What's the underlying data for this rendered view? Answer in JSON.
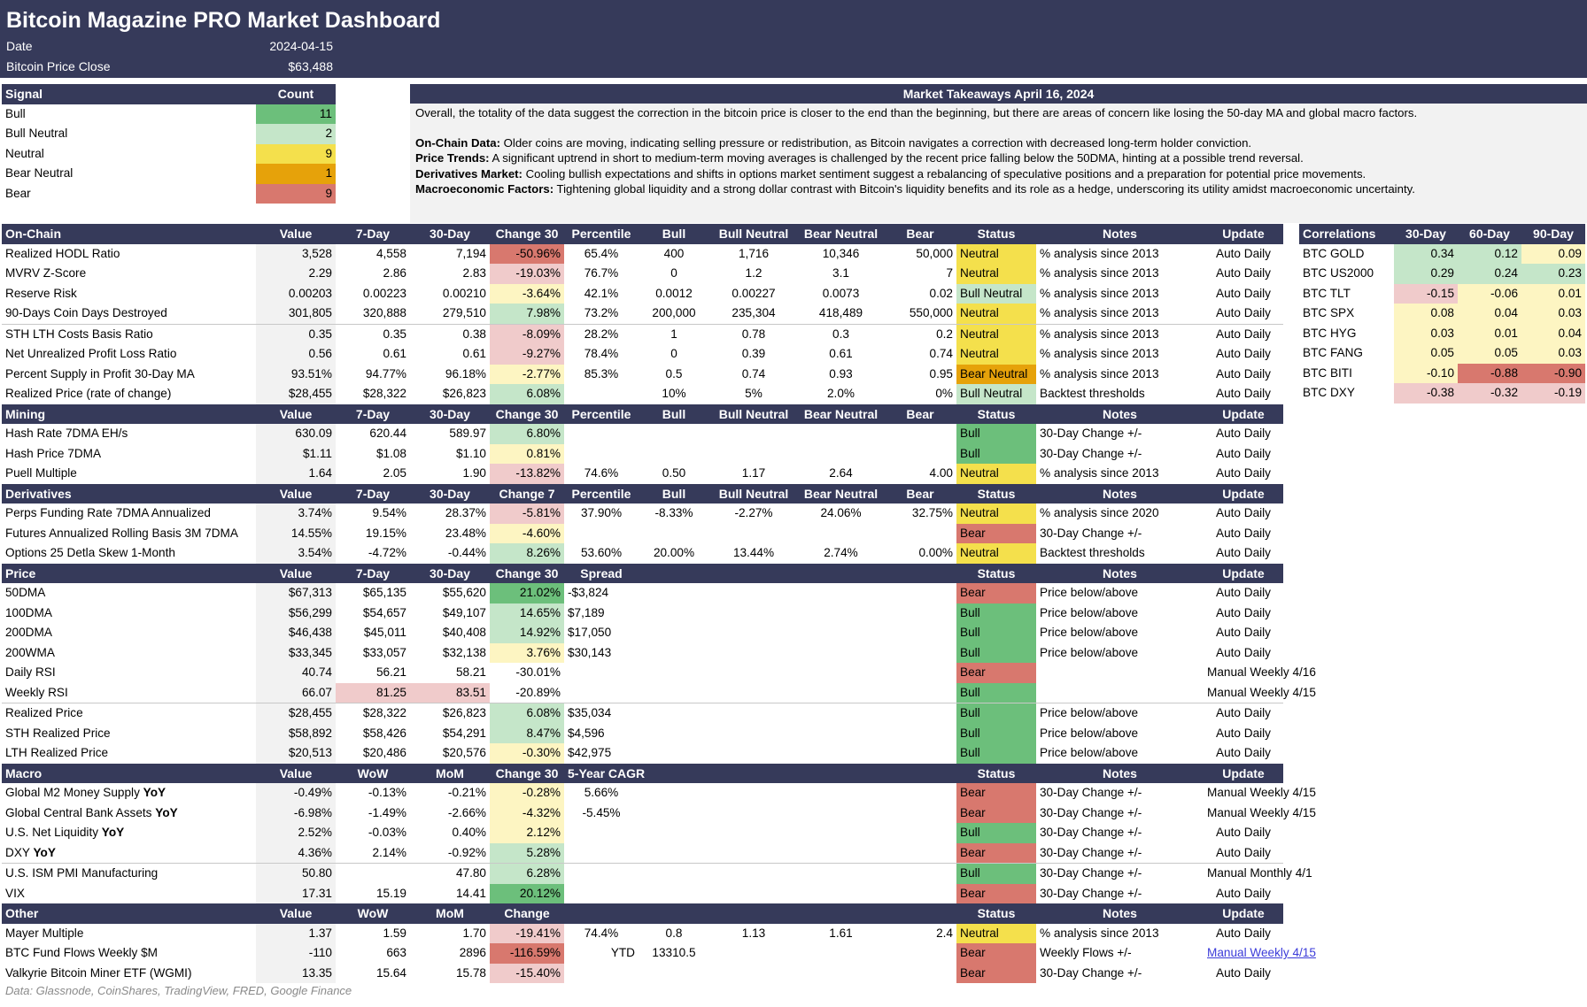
{
  "header": {
    "title": "Bitcoin Magazine PRO Market Dashboard",
    "date_label": "Date",
    "date_value": "2024-04-15",
    "price_label": "Bitcoin Price Close",
    "price_value": "$63,488"
  },
  "colors": {
    "header_bg": "#363a5a",
    "green_strong": "#6cbf7b",
    "green_light": "#c5e6c9",
    "yellow": "#f4e04c",
    "yellow_light": "#fdf5c2",
    "orange": "#e6a20a",
    "red": "#d8786e",
    "red_light": "#f0cbcb",
    "gray_cell": "#f2f2f2"
  },
  "signals": {
    "h1": "Signal",
    "h2": "Count",
    "rows": [
      {
        "name": "Bull",
        "count": "11",
        "color": "#6cbf7b"
      },
      {
        "name": "Bull Neutral",
        "count": "2",
        "color": "#c5e6c9"
      },
      {
        "name": "Neutral",
        "count": "9",
        "color": "#f4e04c"
      },
      {
        "name": "Bear Neutral",
        "count": "1",
        "color": "#e6a20a"
      },
      {
        "name": "Bear",
        "count": "9",
        "color": "#d8786e"
      }
    ]
  },
  "takeaways": {
    "title": "Market Takeaways April 16, 2024",
    "intro": "Overall, the totality of the data suggest the correction in the bitcoin price is closer to the end than the beginning, but there are areas of concern like losing the 50-day MA and global macro factors.",
    "items": [
      {
        "label": "On-Chain Data:",
        "text": " Older coins are moving, indicating selling pressure or redistribution, as Bitcoin navigates a correction with decreased long-term holder conviction."
      },
      {
        "label": "Price Trends:",
        "text": " A significant uptrend in short to medium-term moving averages is challenged by the recent price falling below the 50DMA, hinting at a possible trend reversal."
      },
      {
        "label": "Derivatives Market:",
        "text": " Cooling bullish expectations and shifts in options market sentiment suggest a rebalancing of speculative positions and a preparation for potential price movements."
      },
      {
        "label": "Macroeconomic Factors:",
        "text": " Tightening global liquidity and a strong dollar contrast with Bitcoin's liquidity benefits and its role as a hedge, underscoring its utility amidst macroeconomic uncertainty."
      }
    ]
  },
  "main": {
    "sections": [
      {
        "name": "On-Chain",
        "cols": [
          "Value",
          "7-Day",
          "30-Day",
          "Change 30",
          "Percentile",
          "Bull",
          "Bull Neutral",
          "Bear Neutral",
          "Bear",
          "Status",
          "Notes",
          "Update"
        ],
        "rows": [
          {
            "m": "Realized HODL Ratio",
            "v": "3,528",
            "d7": "4,558",
            "d30": "7,194",
            "ch": "-50.96%",
            "chc": "#d8786e",
            "p": "65.4%",
            "b": "400",
            "bn": "1,716",
            "brn": "10,346",
            "br": "50,000",
            "st": "Neutral",
            "n": "% analysis since 2013",
            "u": "Auto Daily"
          },
          {
            "m": "MVRV Z-Score",
            "v": "2.29",
            "d7": "2.86",
            "d30": "2.83",
            "ch": "-19.03%",
            "chc": "#f0cbcb",
            "p": "76.7%",
            "b": "0",
            "bn": "1.2",
            "brn": "3.1",
            "br": "7",
            "st": "Neutral",
            "n": "% analysis since 2013",
            "u": "Auto Daily"
          },
          {
            "m": "Reserve Risk",
            "v": "0.00203",
            "d7": "0.00223",
            "d30": "0.00210",
            "ch": "-3.64%",
            "chc": "#fdf5c2",
            "p": "42.1%",
            "b": "0.0012",
            "bn": "0.00227",
            "brn": "0.0073",
            "br": "0.02",
            "st": "Bull Neutral",
            "n": "% analysis since 2013",
            "u": "Auto Daily"
          },
          {
            "m": "90-Days Coin Days Destroyed",
            "v": "301,805",
            "d7": "320,888",
            "d30": "279,510",
            "ch": "7.98%",
            "chc": "#c5e6c9",
            "p": "73.2%",
            "b": "200,000",
            "bn": "235,304",
            "brn": "418,489",
            "br": "550,000",
            "st": "Neutral",
            "n": "% analysis since 2013",
            "u": "Auto Daily"
          },
          {
            "m": "STH LTH Costs Basis Ratio",
            "v": "0.35",
            "d7": "0.35",
            "d30": "0.38",
            "ch": "-8.09%",
            "chc": "#f0cbcb",
            "p": "28.2%",
            "b": "1",
            "bn": "0.78",
            "brn": "0.3",
            "br": "0.2",
            "st": "Neutral",
            "n": "% analysis since 2013",
            "u": "Auto Daily",
            "sep": true
          },
          {
            "m": "Net Unrealized Profit Loss Ratio",
            "v": "0.56",
            "d7": "0.61",
            "d30": "0.61",
            "ch": "-9.27%",
            "chc": "#f0cbcb",
            "p": "78.4%",
            "b": "0",
            "bn": "0.39",
            "brn": "0.61",
            "br": "0.74",
            "st": "Neutral",
            "n": "% analysis since 2013",
            "u": "Auto Daily"
          },
          {
            "m": "Percent Supply in Profit 30-Day MA",
            "v": "93.51%",
            "d7": "94.77%",
            "d30": "96.18%",
            "ch": "-2.77%",
            "chc": "#fdf5c2",
            "p": "85.3%",
            "b": "0.5",
            "bn": "0.74",
            "brn": "0.93",
            "br": "0.95",
            "st": "Bear Neutral",
            "n": "% analysis since 2013",
            "u": "Auto Daily"
          },
          {
            "m": "Realized Price (rate of change)",
            "v": "$28,455",
            "d7": "$28,322",
            "d30": "$26,823",
            "ch": "6.08%",
            "chc": "#c5e6c9",
            "p": "",
            "b": "10%",
            "bn": "5%",
            "brn": "2.0%",
            "br": "0%",
            "st": "Bull Neutral",
            "n": "Backtest thresholds",
            "u": "Auto Daily"
          }
        ]
      },
      {
        "name": "Mining",
        "cols": [
          "Value",
          "7-Day",
          "30-Day",
          "Change 30",
          "Percentile",
          "Bull",
          "Bull Neutral",
          "Bear Neutral",
          "Bear",
          "Status",
          "Notes",
          "Update"
        ],
        "rows": [
          {
            "m": "Hash Rate 7DMA EH/s",
            "v": "630.09",
            "d7": "620.44",
            "d30": "589.97",
            "ch": "6.80%",
            "chc": "#c5e6c9",
            "p": "",
            "b": "",
            "bn": "",
            "brn": "",
            "br": "",
            "st": "Bull",
            "n": "30-Day Change +/-",
            "u": "Auto Daily"
          },
          {
            "m": "Hash Price 7DMA",
            "v": "$1.11",
            "d7": "$1.08",
            "d30": "$1.10",
            "ch": "0.81%",
            "chc": "#fdf5c2",
            "p": "",
            "b": "",
            "bn": "",
            "brn": "",
            "br": "",
            "st": "Bull",
            "n": "30-Day Change +/-",
            "u": "Auto Daily"
          },
          {
            "m": "Puell Multiple",
            "v": "1.64",
            "d7": "2.05",
            "d30": "1.90",
            "ch": "-13.82%",
            "chc": "#f0cbcb",
            "p": "74.6%",
            "b": "0.50",
            "bn": "1.17",
            "brn": "2.64",
            "br": "4.00",
            "st": "Neutral",
            "n": "% analysis since 2013",
            "u": "Auto Daily"
          }
        ]
      },
      {
        "name": "Derivatives",
        "cols": [
          "Value",
          "7-Day",
          "30-Day",
          "Change 7",
          "Percentile",
          "Bull",
          "Bull Neutral",
          "Bear Neutral",
          "Bear",
          "Status",
          "Notes",
          "Update"
        ],
        "rows": [
          {
            "m": "Perps Funding Rate 7DMA Annualized",
            "v": "3.74%",
            "d7": "9.54%",
            "d30": "28.37%",
            "ch": "-5.81%",
            "chc": "#f0cbcb",
            "p": "37.90%",
            "b": "-8.33%",
            "bn": "-2.27%",
            "brn": "24.06%",
            "br": "32.75%",
            "st": "Neutral",
            "n": "% analysis since 2020",
            "u": "Auto Daily"
          },
          {
            "m": "Futures Annualized Rolling Basis 3M 7DMA",
            "v": "14.55%",
            "d7": "19.15%",
            "d30": "23.48%",
            "ch": "-4.60%",
            "chc": "#fdf5c2",
            "p": "",
            "b": "",
            "bn": "",
            "brn": "",
            "br": "",
            "st": "Bear",
            "n": "30-Day Change +/-",
            "u": "Auto Daily"
          },
          {
            "m": "Options 25 Detla Skew 1-Month",
            "v": "3.54%",
            "d7": "-4.72%",
            "d30": "-0.44%",
            "ch": "8.26%",
            "chc": "#c5e6c9",
            "p": "53.60%",
            "b": "20.00%",
            "bn": "13.44%",
            "brn": "2.74%",
            "br": "0.00%",
            "st": "Neutral",
            "n": "Backtest thresholds",
            "u": "Auto Daily"
          }
        ]
      },
      {
        "name": "Price",
        "cols": [
          "Value",
          "7-Day",
          "30-Day",
          "Change 30",
          "Spread",
          "",
          "",
          "",
          "",
          "Status",
          "Notes",
          "Update"
        ],
        "rows": [
          {
            "m": "50DMA",
            "v": "$67,313",
            "d7": "$65,135",
            "d30": "$55,620",
            "ch": "21.02%",
            "chc": "#6cbf7b",
            "p": "-$3,824",
            "b": "",
            "bn": "",
            "brn": "",
            "br": "",
            "st": "Bear",
            "n": "Price below/above",
            "u": "Auto Daily"
          },
          {
            "m": "100DMA",
            "v": "$56,299",
            "d7": "$54,657",
            "d30": "$49,107",
            "ch": "14.65%",
            "chc": "#c5e6c9",
            "p": "$7,189",
            "b": "",
            "bn": "",
            "brn": "",
            "br": "",
            "st": "Bull",
            "n": "Price below/above",
            "u": "Auto Daily"
          },
          {
            "m": "200DMA",
            "v": "$46,438",
            "d7": "$45,011",
            "d30": "$40,408",
            "ch": "14.92%",
            "chc": "#c5e6c9",
            "p": "$17,050",
            "b": "",
            "bn": "",
            "brn": "",
            "br": "",
            "st": "Bull",
            "n": "Price below/above",
            "u": "Auto Daily"
          },
          {
            "m": "200WMA",
            "v": "$33,345",
            "d7": "$33,057",
            "d30": "$32,138",
            "ch": "3.76%",
            "chc": "#fdf5c2",
            "p": "$30,143",
            "b": "",
            "bn": "",
            "brn": "",
            "br": "",
            "st": "Bull",
            "n": "Price below/above",
            "u": "Auto Daily"
          },
          {
            "m": "Daily RSI",
            "v": "40.74",
            "d7": "56.21",
            "d30": "58.21",
            "ch": "-30.01%",
            "chc": "",
            "p": "",
            "b": "",
            "bn": "",
            "brn": "",
            "br": "",
            "st": "Bear",
            "n": "",
            "u": "Manual Weekly 4/16",
            "ur": true
          },
          {
            "m": "Weekly RSI",
            "v": "66.07",
            "d7": "81.25",
            "d30": "83.51",
            "ch": "-20.89%",
            "chc": "",
            "p": "",
            "b": "",
            "bn": "",
            "brn": "",
            "br": "",
            "st": "Bull",
            "n": "",
            "u": "Manual Weekly 4/15",
            "ur": true,
            "pink": true
          },
          {
            "m": "Realized Price",
            "v": "$28,455",
            "d7": "$28,322",
            "d30": "$26,823",
            "ch": "6.08%",
            "chc": "#c5e6c9",
            "p": "$35,034",
            "b": "",
            "bn": "",
            "brn": "",
            "br": "",
            "st": "Bull",
            "n": "Price below/above",
            "u": "Auto Daily",
            "sep": true
          },
          {
            "m": "STH Realized Price",
            "v": "$58,892",
            "d7": "$58,426",
            "d30": "$54,291",
            "ch": "8.47%",
            "chc": "#c5e6c9",
            "p": "$4,596",
            "b": "",
            "bn": "",
            "brn": "",
            "br": "",
            "st": "Bull",
            "n": "Price below/above",
            "u": "Auto Daily"
          },
          {
            "m": "LTH Realized Price",
            "v": "$20,513",
            "d7": "$20,486",
            "d30": "$20,576",
            "ch": "-0.30%",
            "chc": "#fdf5c2",
            "p": "$42,975",
            "b": "",
            "bn": "",
            "brn": "",
            "br": "",
            "st": "Bull",
            "n": "Price below/above",
            "u": "Auto Daily"
          }
        ]
      },
      {
        "name": "Macro",
        "cols": [
          "Value",
          "WoW",
          "MoM",
          "Change 30",
          "5-Year CAGR",
          "",
          "",
          "",
          "",
          "Status",
          "Notes",
          "Update"
        ],
        "rows": [
          {
            "m": "Global M2 Money Supply ",
            "mb": "YoY",
            "v": "-0.49%",
            "d7": "-0.13%",
            "d30": "-0.21%",
            "ch": "-0.28%",
            "chc": "#fdf5c2",
            "p": "5.66%",
            "b": "",
            "bn": "",
            "brn": "",
            "br": "",
            "st": "Bear",
            "n": "30-Day Change +/-",
            "u": "Manual Weekly 4/15"
          },
          {
            "m": "Global Central Bank Assets ",
            "mb": "YoY",
            "v": "-6.98%",
            "d7": "-1.49%",
            "d30": "-2.66%",
            "ch": "-4.32%",
            "chc": "#fdf5c2",
            "p": "-5.45%",
            "b": "",
            "bn": "",
            "brn": "",
            "br": "",
            "st": "Bear",
            "n": "30-Day Change +/-",
            "u": "Manual Weekly 4/15"
          },
          {
            "m": "U.S. Net Liquidity ",
            "mb": "YoY",
            "v": "2.52%",
            "d7": "-0.03%",
            "d30": "0.40%",
            "ch": "2.12%",
            "chc": "#fdf5c2",
            "p": "",
            "b": "",
            "bn": "",
            "brn": "",
            "br": "",
            "st": "Bull",
            "n": "30-Day Change +/-",
            "u": "Auto Daily"
          },
          {
            "m": "DXY ",
            "mb": "YoY",
            "v": "4.36%",
            "d7": "2.14%",
            "d30": "-0.92%",
            "ch": "5.28%",
            "chc": "#c5e6c9",
            "p": "",
            "b": "",
            "bn": "",
            "brn": "",
            "br": "",
            "st": "Bear",
            "n": "30-Day Change +/-",
            "u": "Auto Daily"
          },
          {
            "m": "U.S. ISM PMI Manufacturing",
            "v": "50.80",
            "d7": "",
            "d30": "47.80",
            "ch": "6.28%",
            "chc": "#c5e6c9",
            "p": "",
            "b": "",
            "bn": "",
            "brn": "",
            "br": "",
            "st": "Bull",
            "n": "30-Day Change +/-",
            "u": "Manual Monthly 4/1",
            "sep": true
          },
          {
            "m": "VIX",
            "v": "17.31",
            "d7": "15.19",
            "d30": "14.41",
            "ch": "20.12%",
            "chc": "#6cbf7b",
            "p": "",
            "b": "",
            "bn": "",
            "brn": "",
            "br": "",
            "st": "Bear",
            "n": "30-Day Change +/-",
            "u": "Auto Daily"
          }
        ]
      },
      {
        "name": "Other",
        "cols": [
          "Value",
          "WoW",
          "MoM",
          "Change",
          "",
          "",
          "",
          "",
          "",
          "Status",
          "Notes",
          "Update"
        ],
        "rows": [
          {
            "m": "Mayer Multiple",
            "v": "1.37",
            "d7": "1.59",
            "d30": "1.70",
            "ch": "-19.41%",
            "chc": "#f0cbcb",
            "p": "74.4%",
            "b": "0.8",
            "bn": "1.13",
            "brn": "1.61",
            "br": "2.4",
            "st": "Neutral",
            "n": "% analysis since 2013",
            "u": "Auto Daily"
          },
          {
            "m": "BTC Fund Flows Weekly $M",
            "v": "-110",
            "d7": "663",
            "d30": "2896",
            "ch": "-116.59%",
            "chc": "#d8786e",
            "p": "YTD",
            "b": "13310.5",
            "bn": "",
            "brn": "",
            "br": "",
            "st": "Bear",
            "n": "Weekly Flows +/-",
            "u": "Manual Weekly 4/15",
            "link": true
          },
          {
            "m": "Valkyrie Bitcoin Miner ETF (WGMI)",
            "v": "13.35",
            "d7": "15.64",
            "d30": "15.78",
            "ch": "-15.40%",
            "chc": "#f0cbcb",
            "p": "",
            "b": "",
            "bn": "",
            "brn": "",
            "br": "",
            "st": "Bear",
            "n": "30-Day Change +/-",
            "u": "Auto Daily"
          }
        ]
      }
    ]
  },
  "correlations": {
    "cols": [
      "Correlations",
      "30-Day",
      "60-Day",
      "90-Day"
    ],
    "rows": [
      {
        "n": "BTC GOLD",
        "v": [
          "0.34",
          "0.12",
          "0.09"
        ],
        "c": [
          "#c5e6c9",
          "#c5e6c9",
          "#fdf5c2"
        ]
      },
      {
        "n": "BTC US2000",
        "v": [
          "0.29",
          "0.24",
          "0.23"
        ],
        "c": [
          "#c5e6c9",
          "#c5e6c9",
          "#c5e6c9"
        ]
      },
      {
        "n": "BTC TLT",
        "v": [
          "-0.15",
          "-0.06",
          "0.01"
        ],
        "c": [
          "#f0cbcb",
          "#fdf5c2",
          "#fdf5c2"
        ]
      },
      {
        "n": "BTC SPX",
        "v": [
          "0.08",
          "0.04",
          "0.03"
        ],
        "c": [
          "#fdf5c2",
          "#fdf5c2",
          "#fdf5c2"
        ]
      },
      {
        "n": "BTC HYG",
        "v": [
          "0.03",
          "0.01",
          "0.04"
        ],
        "c": [
          "#fdf5c2",
          "#fdf5c2",
          "#fdf5c2"
        ]
      },
      {
        "n": "BTC FANG",
        "v": [
          "0.05",
          "0.05",
          "0.03"
        ],
        "c": [
          "#fdf5c2",
          "#fdf5c2",
          "#fdf5c2"
        ]
      },
      {
        "n": "BTC BITI",
        "v": [
          "-0.10",
          "-0.88",
          "-0.90"
        ],
        "c": [
          "#fdf5c2",
          "#d8786e",
          "#d8786e"
        ]
      },
      {
        "n": "BTC DXY",
        "v": [
          "-0.38",
          "-0.32",
          "-0.19"
        ],
        "c": [
          "#f0cbcb",
          "#f0cbcb",
          "#f0cbcb"
        ]
      }
    ]
  },
  "footer": "Data: Glassnode, CoinShares, TradingView, FRED, Google Finance"
}
